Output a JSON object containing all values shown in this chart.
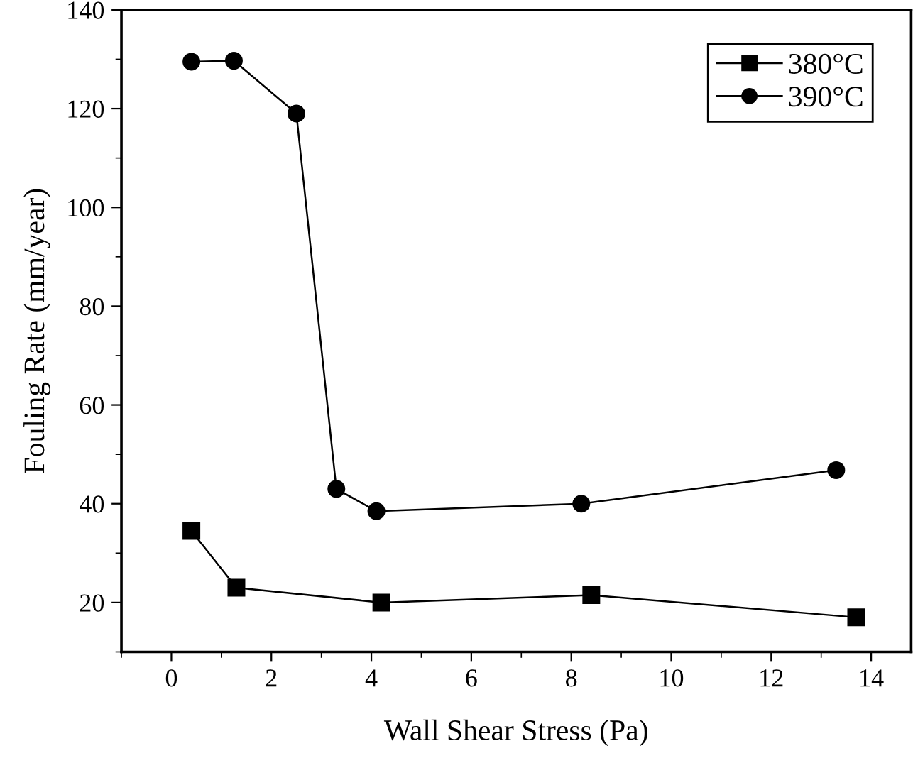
{
  "chart_data": {
    "type": "line",
    "xlabel": "Wall Shear Stress (Pa)",
    "ylabel": "Fouling Rate (mm/year)",
    "xlim": [
      -1,
      14.8
    ],
    "xticks": [
      0,
      2,
      4,
      6,
      8,
      10,
      12,
      14
    ],
    "ylim": [
      10,
      140
    ],
    "yticks": [
      20,
      40,
      60,
      80,
      100,
      120,
      140
    ],
    "grid": false,
    "legend": "top right",
    "line_style": "solid",
    "series": [
      {
        "name": "380°C",
        "color": "#000000",
        "marker": "square",
        "x": [
          0.4,
          1.3,
          4.2,
          8.4,
          13.7
        ],
        "values": [
          34.5,
          23,
          20,
          21.5,
          17
        ]
      },
      {
        "name": "390°C",
        "color": "#000000",
        "marker": "circle",
        "x": [
          0.4,
          1.25,
          2.5,
          3.3,
          4.1,
          8.2,
          13.3
        ],
        "values": [
          129.5,
          129.7,
          119,
          43,
          38.5,
          40,
          46.8
        ]
      }
    ]
  }
}
